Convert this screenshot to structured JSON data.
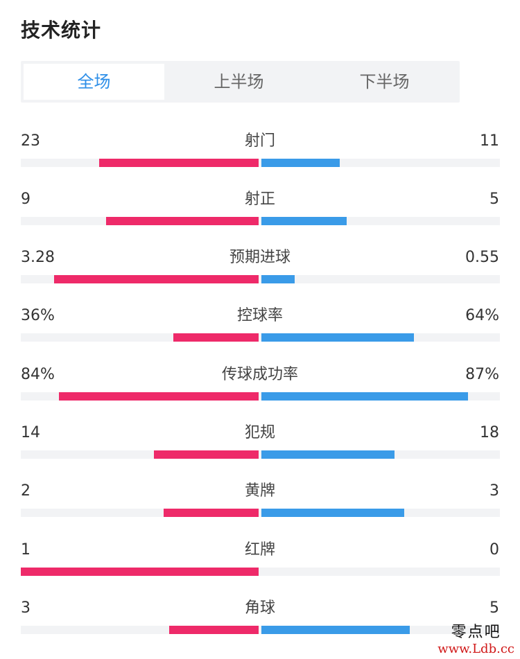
{
  "header": {
    "title": "技术统计"
  },
  "tabs": [
    {
      "label": "全场",
      "active": true
    },
    {
      "label": "上半场",
      "active": false
    },
    {
      "label": "下半场",
      "active": false
    }
  ],
  "colors": {
    "home": "#ee2a69",
    "away": "#3a9be8",
    "active_tab": "#2e8fe8",
    "track": "#f2f3f5"
  },
  "stats": [
    {
      "label": "射门",
      "home": "23",
      "away": "11",
      "home_frac": 0.67,
      "away_frac": 0.33
    },
    {
      "label": "射正",
      "home": "9",
      "away": "5",
      "home_frac": 0.64,
      "away_frac": 0.36
    },
    {
      "label": "预期进球",
      "home": "3.28",
      "away": "0.55",
      "home_frac": 0.86,
      "away_frac": 0.14
    },
    {
      "label": "控球率",
      "home": "36%",
      "away": "64%",
      "home_frac": 0.36,
      "away_frac": 0.64
    },
    {
      "label": "传球成功率",
      "home": "84%",
      "away": "87%",
      "home_frac": 0.84,
      "away_frac": 0.87
    },
    {
      "label": "犯规",
      "home": "14",
      "away": "18",
      "home_frac": 0.44,
      "away_frac": 0.56
    },
    {
      "label": "黄牌",
      "home": "2",
      "away": "3",
      "home_frac": 0.4,
      "away_frac": 0.6
    },
    {
      "label": "红牌",
      "home": "1",
      "away": "0",
      "home_frac": 1.0,
      "away_frac": 0.0
    },
    {
      "label": "角球",
      "home": "3",
      "away": "5",
      "home_frac": 0.375,
      "away_frac": 0.625
    }
  ],
  "watermark": {
    "line1": "零点吧",
    "line2": "www.Ldb.cc"
  }
}
